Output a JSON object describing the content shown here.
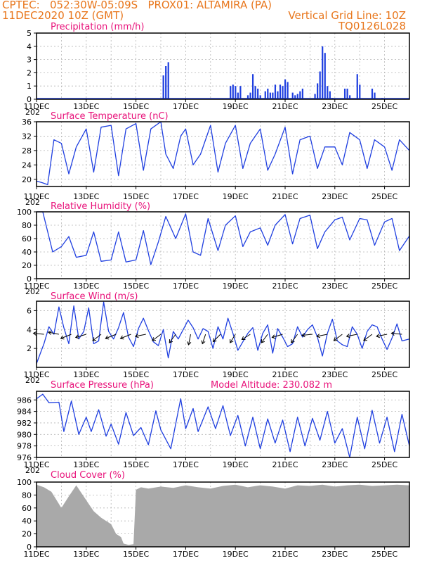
{
  "header": {
    "line1_left": "CPTEC:   052:30W-05:09S   PROX01: ALTAMIRA (PA)",
    "line2_left": "11DEC2020 10Z (GMT)",
    "line2_right": "Vertical Grid Line: 10Z",
    "line3_right": "TQ0126L028"
  },
  "colors": {
    "header": "#e8761c",
    "title": "#e8127a",
    "series": "#1f3fe0",
    "cloud": "#a9a9a9",
    "arrow": "#000000"
  },
  "x_ticks": [
    "11DEC",
    "13DEC",
    "15DEC",
    "17DEC",
    "19DEC",
    "21DEC",
    "23DEC",
    "25DEC"
  ],
  "year_fragment": "202",
  "chart_data": [
    {
      "id": "precip",
      "type": "bar",
      "title": "Precipitation (mm/h)",
      "ylim": [
        0,
        5
      ],
      "yticks": [
        0,
        1,
        2,
        3,
        4,
        5
      ],
      "x": [
        5.1,
        5.2,
        5.3,
        7.8,
        7.9,
        8.0,
        8.1,
        8.2,
        8.5,
        8.6,
        8.7,
        8.8,
        8.9,
        9.0,
        9.2,
        9.3,
        9.4,
        9.5,
        9.6,
        9.7,
        9.8,
        9.9,
        10.0,
        10.1,
        10.3,
        10.4,
        10.5,
        10.6,
        10.7,
        11.2,
        11.3,
        11.4,
        11.5,
        11.6,
        11.7,
        11.8,
        11.9,
        12.4,
        12.5,
        12.6,
        12.9,
        13.0,
        13.5,
        13.6,
        13.9
      ],
      "values": [
        1.8,
        2.5,
        2.8,
        1.0,
        1.1,
        1.0,
        0.5,
        1.0,
        0.3,
        0.5,
        1.9,
        1.0,
        0.8,
        0.3,
        0.6,
        0.8,
        0.5,
        0.5,
        1.1,
        0.6,
        1.1,
        1.0,
        1.5,
        1.3,
        0.5,
        0.3,
        0.4,
        0.6,
        0.8,
        0.4,
        1.2,
        2.1,
        4.0,
        3.5,
        1.0,
        0.6,
        0.1,
        0.8,
        0.8,
        0.3,
        1.9,
        1.1,
        0.8,
        0.5,
        0.1
      ]
    },
    {
      "id": "temp",
      "type": "line",
      "title": "Surface Temperature (nC)",
      "ylim": [
        18,
        36
      ],
      "yticks": [
        20,
        24,
        28,
        32,
        36
      ],
      "x": [
        0,
        0.25,
        0.45,
        0.7,
        1.0,
        1.3,
        1.6,
        2.0,
        2.3,
        2.6,
        3.0,
        3.3,
        3.6,
        4.0,
        4.3,
        4.6,
        5.0,
        5.2,
        5.5,
        5.8,
        6.0,
        6.3,
        6.6,
        7.0,
        7.3,
        7.6,
        8.0,
        8.3,
        8.6,
        9.0,
        9.3,
        9.6,
        10.0,
        10.3,
        10.6,
        11.0,
        11.3,
        11.6,
        12.0,
        12.3,
        12.6,
        13.0,
        13.3,
        13.6,
        14.0,
        14.3,
        14.6,
        15.0
      ],
      "values": [
        19.5,
        19.0,
        18.5,
        31.0,
        30.0,
        21.5,
        29.0,
        34.0,
        22.0,
        34.5,
        35.0,
        21.0,
        34.0,
        35.5,
        22.5,
        34.0,
        36.0,
        27.0,
        23.0,
        32.0,
        34.0,
        24.0,
        27.0,
        35.0,
        22.0,
        30.0,
        35.0,
        23.0,
        30.0,
        34.0,
        22.5,
        27.0,
        34.5,
        21.5,
        31.0,
        32.0,
        23.0,
        29.0,
        29.0,
        24.0,
        33.0,
        31.0,
        23.0,
        31.0,
        29.0,
        22.5,
        31.0,
        28.0
      ]
    },
    {
      "id": "rh",
      "type": "line",
      "title": "Relative Humidity (%)",
      "ylim": [
        0,
        100
      ],
      "yticks": [
        0,
        20,
        40,
        60,
        80,
        100
      ],
      "x": [
        0,
        0.25,
        0.65,
        1.0,
        1.3,
        1.6,
        2.0,
        2.3,
        2.6,
        3.0,
        3.3,
        3.6,
        4.0,
        4.3,
        4.6,
        4.9,
        5.2,
        5.6,
        6.0,
        6.3,
        6.6,
        6.9,
        7.3,
        7.6,
        8.0,
        8.3,
        8.6,
        9.0,
        9.3,
        9.6,
        10.0,
        10.3,
        10.6,
        11.0,
        11.3,
        11.6,
        12.0,
        12.3,
        12.6,
        13.0,
        13.3,
        13.6,
        14.0,
        14.3,
        14.6,
        15.0
      ],
      "values": [
        100,
        100,
        40,
        48,
        63,
        32,
        35,
        70,
        26,
        28,
        70,
        25,
        28,
        72,
        21,
        55,
        93,
        60,
        97,
        40,
        35,
        90,
        42,
        80,
        94,
        48,
        70,
        76,
        50,
        80,
        96,
        52,
        90,
        95,
        45,
        70,
        88,
        92,
        58,
        90,
        88,
        50,
        85,
        90,
        42,
        64
      ]
    },
    {
      "id": "wind",
      "type": "line",
      "title": "Surface Wind (m/s)",
      "ylim": [
        0,
        7
      ],
      "yticks": [
        2,
        4,
        6
      ],
      "x": [
        0,
        0.3,
        0.5,
        0.7,
        0.9,
        1.1,
        1.3,
        1.5,
        1.7,
        1.9,
        2.1,
        2.3,
        2.5,
        2.7,
        2.9,
        3.1,
        3.3,
        3.5,
        3.7,
        3.9,
        4.1,
        4.3,
        4.5,
        4.7,
        4.9,
        5.1,
        5.3,
        5.5,
        5.7,
        5.9,
        6.1,
        6.3,
        6.5,
        6.7,
        6.9,
        7.1,
        7.3,
        7.5,
        7.7,
        7.9,
        8.1,
        8.3,
        8.5,
        8.7,
        8.9,
        9.1,
        9.3,
        9.5,
        9.7,
        9.9,
        10.1,
        10.3,
        10.5,
        10.7,
        10.9,
        11.1,
        11.3,
        11.5,
        11.7,
        11.9,
        12.1,
        12.3,
        12.5,
        12.7,
        12.9,
        13.1,
        13.3,
        13.5,
        13.7,
        13.9,
        14.1,
        14.3,
        14.5,
        14.7,
        15.0
      ],
      "values": [
        0.4,
        2.5,
        4.3,
        3.5,
        6.4,
        4.2,
        2.5,
        6.5,
        3.0,
        3.8,
        6.3,
        2.5,
        2.8,
        6.9,
        3.8,
        3.0,
        4.2,
        5.8,
        3.2,
        2.2,
        4.1,
        5.2,
        3.9,
        2.7,
        2.3,
        4.0,
        1.0,
        3.8,
        3.0,
        4.0,
        5.0,
        4.2,
        3.0,
        4.1,
        3.8,
        2.0,
        4.3,
        3.0,
        5.2,
        3.6,
        1.8,
        2.7,
        3.6,
        4.2,
        1.8,
        3.6,
        4.5,
        1.5,
        4.1,
        3.2,
        2.2,
        2.5,
        4.3,
        3.2,
        4.0,
        4.5,
        3.2,
        1.2,
        3.6,
        5.1,
        2.8,
        2.4,
        2.2,
        4.3,
        3.5,
        2.0,
        3.8,
        4.5,
        4.3,
        3.0,
        1.9,
        3.1,
        4.6,
        2.8,
        3.0
      ],
      "barbs": [
        {
          "x": 0.3,
          "u": -1,
          "v": 0.1
        },
        {
          "x": 0.9,
          "u": -1,
          "v": 0.2
        },
        {
          "x": 1.4,
          "u": -1,
          "v": -0.4
        },
        {
          "x": 2.0,
          "u": -1,
          "v": -0.3
        },
        {
          "x": 2.6,
          "u": -0.8,
          "v": -0.6
        },
        {
          "x": 3.2,
          "u": -1,
          "v": -0.4
        },
        {
          "x": 3.8,
          "u": -1,
          "v": -0.4
        },
        {
          "x": 4.4,
          "u": -1,
          "v": -0.2
        },
        {
          "x": 5.0,
          "u": -0.8,
          "v": -0.6
        },
        {
          "x": 5.6,
          "u": -0.6,
          "v": -0.8
        },
        {
          "x": 6.2,
          "u": -0.2,
          "v": -1
        },
        {
          "x": 6.8,
          "u": -0.3,
          "v": -0.9
        },
        {
          "x": 7.4,
          "u": -0.7,
          "v": -0.7
        },
        {
          "x": 8.0,
          "u": -0.5,
          "v": -0.8
        },
        {
          "x": 8.6,
          "u": -0.8,
          "v": -0.5
        },
        {
          "x": 9.3,
          "u": -0.6,
          "v": -0.8
        },
        {
          "x": 9.9,
          "u": -1,
          "v": -0.3
        },
        {
          "x": 10.5,
          "u": -0.6,
          "v": -0.8
        },
        {
          "x": 11.1,
          "u": -1,
          "v": -0.1
        },
        {
          "x": 11.7,
          "u": -1,
          "v": -0.2
        },
        {
          "x": 12.3,
          "u": -0.8,
          "v": -0.6
        },
        {
          "x": 12.9,
          "u": -1,
          "v": -0.2
        },
        {
          "x": 13.5,
          "u": -0.8,
          "v": -0.6
        },
        {
          "x": 14.1,
          "u": -1,
          "v": -0.2
        },
        {
          "x": 14.7,
          "u": -1,
          "v": 0.1
        }
      ]
    },
    {
      "id": "pres",
      "type": "line",
      "title": "Surface Pressure (hPa)",
      "subtitle": "Model Altitude: 230.082 m",
      "ylim": [
        976,
        987.5
      ],
      "yticks": [
        976,
        978,
        980,
        982,
        984,
        986
      ],
      "x": [
        0,
        0.25,
        0.5,
        0.9,
        1.1,
        1.4,
        1.7,
        2.0,
        2.2,
        2.5,
        2.8,
        3.0,
        3.3,
        3.6,
        3.9,
        4.2,
        4.5,
        4.8,
        5.0,
        5.4,
        5.8,
        6.0,
        6.3,
        6.5,
        6.9,
        7.2,
        7.5,
        7.8,
        8.1,
        8.4,
        8.7,
        9.0,
        9.3,
        9.6,
        9.9,
        10.2,
        10.5,
        10.8,
        11.1,
        11.4,
        11.7,
        12.0,
        12.3,
        12.6,
        12.9,
        13.2,
        13.5,
        13.8,
        14.1,
        14.4,
        14.7,
        15.0
      ],
      "values": [
        986.2,
        987,
        985.5,
        985.6,
        980.5,
        985.8,
        980.0,
        983.0,
        980.5,
        984.3,
        979.7,
        981.8,
        978.3,
        983.8,
        979.8,
        981.2,
        978.2,
        984.1,
        980.8,
        977.5,
        986.2,
        981.0,
        984.5,
        980.5,
        984.8,
        981.0,
        985.0,
        979.8,
        983.3,
        978.0,
        983.0,
        977.5,
        982.7,
        978.5,
        982.5,
        977.0,
        983.0,
        978.0,
        982.8,
        979.0,
        984.0,
        978.5,
        981.0,
        976.0,
        983.0,
        977.5,
        984.2,
        978.5,
        983.0,
        977.0,
        983.5,
        978.0
      ]
    },
    {
      "id": "cloud",
      "type": "area",
      "title": "Cloud Cover (%)",
      "ylim": [
        0,
        100
      ],
      "yticks": [
        0,
        20,
        40,
        60,
        80,
        100
      ],
      "x": [
        0,
        0.3,
        0.6,
        1.0,
        1.3,
        1.6,
        2.0,
        2.3,
        2.6,
        2.8,
        3.0,
        3.2,
        3.4,
        3.5,
        3.7,
        3.9,
        4.0,
        4.2,
        4.5,
        5.0,
        5.5,
        6.0,
        6.5,
        7.0,
        7.5,
        8.0,
        8.5,
        9.0,
        9.5,
        10.0,
        10.5,
        11.0,
        11.5,
        12.0,
        12.5,
        13.0,
        13.5,
        14.0,
        14.5,
        15.0
      ],
      "values": [
        96,
        92,
        85,
        60,
        78,
        95,
        72,
        55,
        45,
        40,
        35,
        20,
        15,
        5,
        3,
        4,
        88,
        92,
        90,
        93,
        91,
        95,
        92,
        90,
        94,
        96,
        92,
        95,
        93,
        90,
        95,
        94,
        96,
        93,
        95,
        96,
        94,
        95,
        96,
        95
      ]
    }
  ]
}
